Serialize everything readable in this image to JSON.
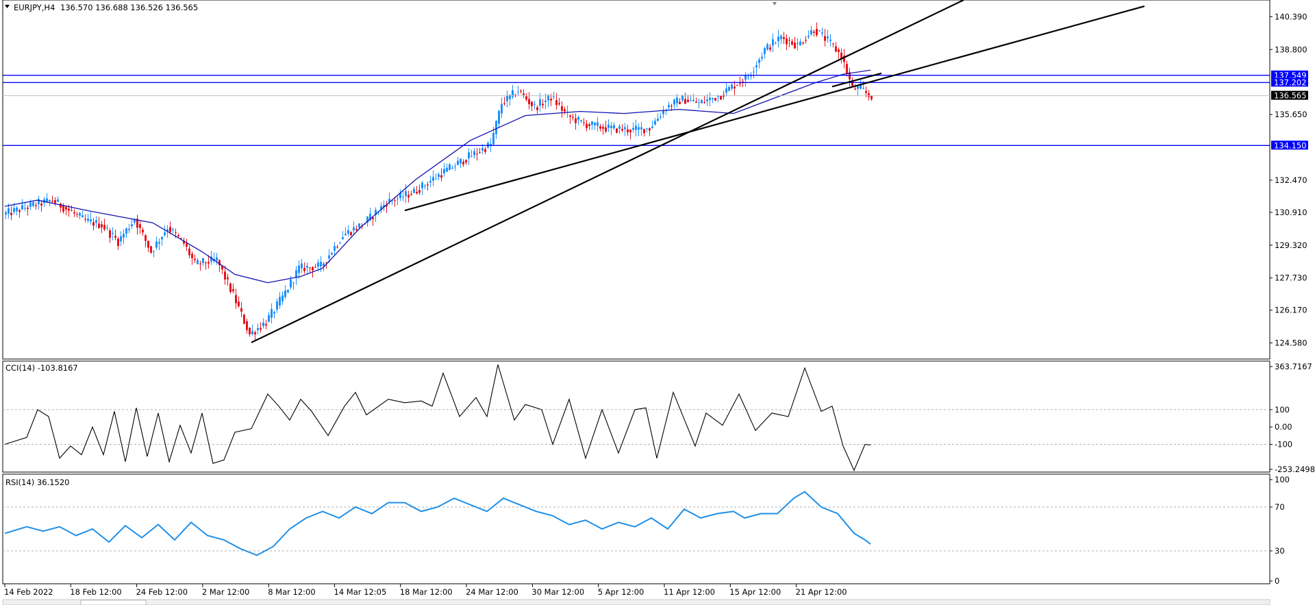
{
  "header": {
    "symbol": "EURJPY,H4",
    "ohlc": "136.570 136.688 136.526 136.565"
  },
  "chart_data": [
    {
      "type": "candlestick",
      "title": "EURJPY,H4",
      "ylim": [
        123.8,
        141.2
      ],
      "y_ticks": [
        "140.390",
        "138.800",
        "137.549",
        "137.202",
        "136.565",
        "135.650",
        "134.150",
        "132.470",
        "130.910",
        "129.320",
        "127.730",
        "126.170",
        "124.580"
      ],
      "x_labels": [
        "14 Feb 2022",
        "18 Feb 12:00",
        "24 Feb 12:00",
        "2 Mar 12:00",
        "8 Mar 12:00",
        "14 Mar 12:05",
        "18 Mar 12:00",
        "24 Mar 12:00",
        "30 Mar 12:00",
        "5 Apr 12:00",
        "11 Apr 12:00",
        "15 Apr 12:00",
        "21 Apr 12:00"
      ],
      "price_path": [
        [
          0,
          130.8
        ],
        [
          12,
          131.3
        ],
        [
          18,
          131.5
        ],
        [
          24,
          131.0
        ],
        [
          30,
          130.5
        ],
        [
          36,
          130.3
        ],
        [
          42,
          129.5
        ],
        [
          48,
          130.6
        ],
        [
          54,
          129.0
        ],
        [
          60,
          130.2
        ],
        [
          66,
          129.4
        ],
        [
          70,
          128.4
        ],
        [
          78,
          128.6
        ],
        [
          84,
          126.9
        ],
        [
          90,
          125.0
        ],
        [
          96,
          125.6
        ],
        [
          102,
          126.8
        ],
        [
          108,
          128.2
        ],
        [
          116,
          128.3
        ],
        [
          124,
          129.8
        ],
        [
          132,
          130.4
        ],
        [
          140,
          131.4
        ],
        [
          150,
          131.9
        ],
        [
          160,
          132.8
        ],
        [
          170,
          133.6
        ],
        [
          178,
          134.2
        ],
        [
          182,
          136.2
        ],
        [
          188,
          136.8
        ],
        [
          194,
          136.0
        ],
        [
          200,
          136.5
        ],
        [
          206,
          135.6
        ],
        [
          212,
          135.2
        ],
        [
          220,
          135.0
        ],
        [
          230,
          134.9
        ],
        [
          236,
          135.0
        ],
        [
          242,
          136.0
        ],
        [
          248,
          136.4
        ],
        [
          254,
          136.2
        ],
        [
          262,
          136.6
        ],
        [
          266,
          137.0
        ],
        [
          272,
          137.5
        ],
        [
          278,
          138.8
        ],
        [
          284,
          139.4
        ],
        [
          290,
          139.0
        ],
        [
          296,
          139.8
        ],
        [
          302,
          139.1
        ],
        [
          306,
          138.5
        ],
        [
          310,
          136.9
        ],
        [
          313,
          136.9
        ],
        [
          316,
          136.565
        ]
      ],
      "ma_path": [
        [
          0,
          131.2
        ],
        [
          12,
          131.5
        ],
        [
          30,
          131.0
        ],
        [
          54,
          130.4
        ],
        [
          72,
          129.0
        ],
        [
          84,
          127.9
        ],
        [
          96,
          127.5
        ],
        [
          108,
          127.8
        ],
        [
          116,
          128.2
        ],
        [
          130,
          130.2
        ],
        [
          150,
          132.5
        ],
        [
          170,
          134.4
        ],
        [
          190,
          135.6
        ],
        [
          210,
          135.8
        ],
        [
          226,
          135.7
        ],
        [
          246,
          135.9
        ],
        [
          266,
          135.7
        ],
        [
          282,
          136.5
        ],
        [
          296,
          137.2
        ],
        [
          306,
          137.6
        ],
        [
          316,
          137.8
        ]
      ],
      "trendlines": [
        {
          "from": [
            90,
            124.6
          ],
          "to": [
            350,
            141.2
          ]
        },
        {
          "from": [
            146,
            131.0
          ],
          "to": [
            416,
            140.9
          ]
        },
        {
          "from": [
            302,
            137.0
          ],
          "to": [
            320,
            137.65
          ]
        }
      ],
      "h_levels": [
        {
          "value": 137.549,
          "label": "137.549",
          "color": "#0000ff"
        },
        {
          "value": 137.202,
          "label": "137.202",
          "color": "#0000ff"
        },
        {
          "value": 134.15,
          "label": "134.150",
          "color": "#0000ff"
        }
      ],
      "last_price": {
        "value": 136.565,
        "label": "136.565"
      }
    },
    {
      "type": "line",
      "title": "CCI(14) -103.8167",
      "ylim": [
        -260,
        380
      ],
      "y_ticks": [
        "363.7167",
        "100",
        "0.00",
        "-100",
        "-253.2498"
      ],
      "levels": [
        100,
        -100
      ],
      "series": [
        [
          0,
          -100
        ],
        [
          8,
          -60
        ],
        [
          12,
          100
        ],
        [
          16,
          60
        ],
        [
          20,
          -180
        ],
        [
          24,
          -110
        ],
        [
          28,
          -160
        ],
        [
          32,
          0
        ],
        [
          36,
          -160
        ],
        [
          40,
          90
        ],
        [
          44,
          -200
        ],
        [
          48,
          110
        ],
        [
          52,
          -170
        ],
        [
          56,
          80
        ],
        [
          60,
          -200
        ],
        [
          64,
          10
        ],
        [
          68,
          -150
        ],
        [
          72,
          80
        ],
        [
          76,
          -210
        ],
        [
          80,
          -190
        ],
        [
          84,
          -30
        ],
        [
          90,
          -10
        ],
        [
          96,
          190
        ],
        [
          100,
          120
        ],
        [
          104,
          40
        ],
        [
          108,
          160
        ],
        [
          112,
          90
        ],
        [
          118,
          -50
        ],
        [
          124,
          120
        ],
        [
          128,
          200
        ],
        [
          132,
          70
        ],
        [
          140,
          160
        ],
        [
          146,
          140
        ],
        [
          152,
          150
        ],
        [
          156,
          120
        ],
        [
          160,
          310
        ],
        [
          166,
          60
        ],
        [
          172,
          170
        ],
        [
          176,
          60
        ],
        [
          180,
          360
        ],
        [
          186,
          40
        ],
        [
          190,
          130
        ],
        [
          196,
          100
        ],
        [
          200,
          -100
        ],
        [
          206,
          160
        ],
        [
          212,
          -180
        ],
        [
          218,
          100
        ],
        [
          224,
          -150
        ],
        [
          230,
          100
        ],
        [
          234,
          110
        ],
        [
          238,
          -180
        ],
        [
          244,
          200
        ],
        [
          252,
          -110
        ],
        [
          256,
          80
        ],
        [
          262,
          10
        ],
        [
          268,
          190
        ],
        [
          274,
          -20
        ],
        [
          280,
          80
        ],
        [
          286,
          60
        ],
        [
          292,
          340
        ],
        [
          298,
          90
        ],
        [
          302,
          120
        ],
        [
          306,
          -110
        ],
        [
          310,
          -250
        ],
        [
          314,
          -100
        ],
        [
          316,
          -103.8
        ]
      ]
    },
    {
      "type": "line",
      "title": "RSI(14) 36.1520",
      "ylim": [
        0,
        100
      ],
      "y_ticks": [
        "100",
        "70",
        "30",
        "0"
      ],
      "levels": [
        70,
        30
      ],
      "series": [
        [
          0,
          46
        ],
        [
          8,
          52
        ],
        [
          14,
          48
        ],
        [
          20,
          52
        ],
        [
          26,
          44
        ],
        [
          32,
          50
        ],
        [
          38,
          38
        ],
        [
          44,
          53
        ],
        [
          50,
          42
        ],
        [
          56,
          54
        ],
        [
          62,
          40
        ],
        [
          68,
          56
        ],
        [
          74,
          44
        ],
        [
          80,
          40
        ],
        [
          86,
          32
        ],
        [
          92,
          26
        ],
        [
          98,
          34
        ],
        [
          104,
          50
        ],
        [
          110,
          60
        ],
        [
          116,
          66
        ],
        [
          122,
          60
        ],
        [
          128,
          70
        ],
        [
          134,
          64
        ],
        [
          140,
          74
        ],
        [
          146,
          74
        ],
        [
          152,
          66
        ],
        [
          158,
          70
        ],
        [
          164,
          78
        ],
        [
          170,
          72
        ],
        [
          176,
          66
        ],
        [
          182,
          78
        ],
        [
          188,
          72
        ],
        [
          194,
          66
        ],
        [
          200,
          62
        ],
        [
          206,
          54
        ],
        [
          212,
          58
        ],
        [
          218,
          50
        ],
        [
          224,
          56
        ],
        [
          230,
          52
        ],
        [
          236,
          60
        ],
        [
          242,
          50
        ],
        [
          248,
          68
        ],
        [
          254,
          60
        ],
        [
          260,
          64
        ],
        [
          266,
          66
        ],
        [
          270,
          60
        ],
        [
          276,
          64
        ],
        [
          282,
          64
        ],
        [
          288,
          78
        ],
        [
          292,
          84
        ],
        [
          298,
          70
        ],
        [
          304,
          64
        ],
        [
          310,
          46
        ],
        [
          314,
          40
        ],
        [
          316,
          36.2
        ]
      ]
    }
  ]
}
